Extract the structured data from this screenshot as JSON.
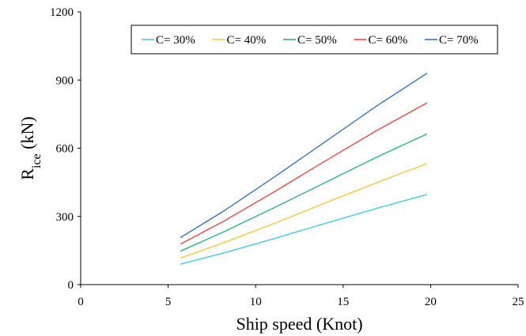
{
  "chart_data": {
    "type": "line",
    "title": "",
    "xlabel": "Ship speed (Knot)",
    "ylabel_main": "R",
    "ylabel_sub": "ice",
    "ylabel_unit": " (kN)",
    "xlim": [
      0,
      25
    ],
    "ylim": [
      0,
      1200
    ],
    "xticks": [
      0,
      5,
      10,
      15,
      20,
      25
    ],
    "yticks": [
      0,
      300,
      600,
      900,
      1200
    ],
    "grid": false,
    "legend": {
      "placement": "top-right",
      "boxed": true
    },
    "x": [
      5.7,
      8.2,
      11.1,
      14.0,
      16.9,
      19.8
    ],
    "series": [
      {
        "name": "C= 30%",
        "color": "#4bc6e0",
        "values": [
          90,
          140,
          203,
          270,
          335,
          397
        ]
      },
      {
        "name": "C= 40%",
        "color": "#f5c64a",
        "values": [
          117,
          185,
          270,
          360,
          448,
          533
        ]
      },
      {
        "name": "C= 50%",
        "color": "#34b07d",
        "values": [
          147,
          233,
          340,
          450,
          560,
          663
        ]
      },
      {
        "name": "C= 60%",
        "color": "#e94a4a",
        "values": [
          178,
          280,
          410,
          545,
          677,
          800
        ]
      },
      {
        "name": "C= 70%",
        "color": "#3b74b8",
        "values": [
          207,
          325,
          475,
          630,
          785,
          930
        ]
      }
    ]
  }
}
